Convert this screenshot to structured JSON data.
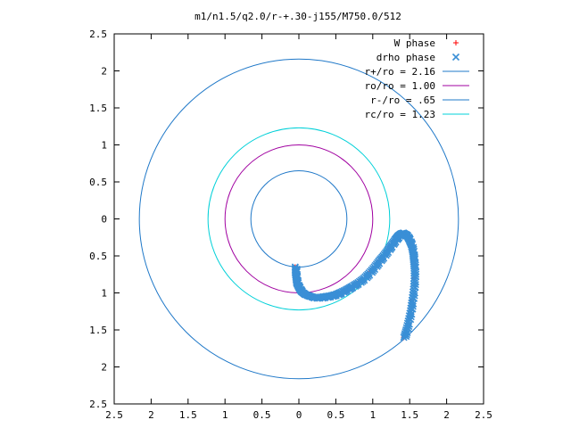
{
  "chart_data": {
    "type": "scatter",
    "title": "m1/n1.5/q2.0/r-+.30-j155/M750.0/512",
    "xlabel": "",
    "ylabel": "",
    "xlim": [
      -2.5,
      2.5
    ],
    "ylim": [
      -2.5,
      2.5
    ],
    "x_tick_labels": [
      "2.5",
      "2",
      "1.5",
      "1",
      "0.5",
      "0",
      "0.5",
      "1",
      "1.5",
      "2",
      "2.5"
    ],
    "y_tick_labels": [
      "2.5",
      "2",
      "1.5",
      "1",
      "0.5",
      "0",
      "0.5",
      "1",
      "1.5",
      "2",
      "2.5"
    ],
    "x_ticks": [
      -2.5,
      -2,
      -1.5,
      -1,
      -0.5,
      0,
      0.5,
      1,
      1.5,
      2,
      2.5
    ],
    "y_ticks": [
      2.5,
      2,
      1.5,
      1,
      0.5,
      0,
      -0.5,
      -1,
      -1.5,
      -2,
      -2.5
    ],
    "grid": false,
    "legend_position": "top-right",
    "series": [
      {
        "name": "W phase",
        "kind": "points",
        "marker": "plus",
        "color": "#ff0000",
        "points": [
          [
            -0.05,
            -0.65
          ],
          [
            -0.04,
            -0.8
          ],
          [
            0.0,
            -0.95
          ],
          [
            0.08,
            -1.02
          ],
          [
            0.2,
            -1.06
          ],
          [
            0.35,
            -1.05
          ],
          [
            0.5,
            -1.02
          ],
          [
            0.65,
            -0.95
          ],
          [
            0.8,
            -0.86
          ],
          [
            0.95,
            -0.73
          ],
          [
            1.08,
            -0.57
          ],
          [
            1.2,
            -0.42
          ],
          [
            1.3,
            -0.28
          ],
          [
            1.38,
            -0.2
          ],
          [
            1.46,
            -0.22
          ],
          [
            1.52,
            -0.35
          ],
          [
            1.55,
            -0.55
          ],
          [
            1.56,
            -0.8
          ],
          [
            1.53,
            -1.1
          ],
          [
            1.48,
            -1.38
          ],
          [
            1.42,
            -1.6
          ]
        ]
      },
      {
        "name": "drho phase",
        "kind": "points",
        "marker": "cross",
        "color": "#3a8fd6",
        "points": [
          [
            -0.05,
            -0.65
          ],
          [
            -0.05,
            -0.72
          ],
          [
            -0.04,
            -0.8
          ],
          [
            -0.03,
            -0.87
          ],
          [
            0.0,
            -0.93
          ],
          [
            0.03,
            -0.98
          ],
          [
            0.08,
            -1.02
          ],
          [
            0.14,
            -1.04
          ],
          [
            0.2,
            -1.06
          ],
          [
            0.28,
            -1.06
          ],
          [
            0.35,
            -1.05
          ],
          [
            0.42,
            -1.04
          ],
          [
            0.5,
            -1.02
          ],
          [
            0.57,
            -0.99
          ],
          [
            0.65,
            -0.95
          ],
          [
            0.72,
            -0.91
          ],
          [
            0.8,
            -0.86
          ],
          [
            0.88,
            -0.8
          ],
          [
            0.95,
            -0.73
          ],
          [
            1.02,
            -0.65
          ],
          [
            1.08,
            -0.57
          ],
          [
            1.14,
            -0.5
          ],
          [
            1.2,
            -0.42
          ],
          [
            1.25,
            -0.35
          ],
          [
            1.3,
            -0.28
          ],
          [
            1.34,
            -0.23
          ],
          [
            1.38,
            -0.2
          ],
          [
            1.42,
            -0.19
          ],
          [
            1.46,
            -0.22
          ],
          [
            1.49,
            -0.28
          ],
          [
            1.52,
            -0.35
          ],
          [
            1.54,
            -0.45
          ],
          [
            1.55,
            -0.55
          ],
          [
            1.56,
            -0.67
          ],
          [
            1.56,
            -0.8
          ],
          [
            1.55,
            -0.95
          ],
          [
            1.53,
            -1.1
          ],
          [
            1.51,
            -1.24
          ],
          [
            1.48,
            -1.38
          ],
          [
            1.45,
            -1.5
          ],
          [
            1.42,
            -1.6
          ]
        ]
      },
      {
        "name": "r+/ro = 2.16",
        "kind": "circle",
        "radius": 2.16,
        "color": "#1f78c8"
      },
      {
        "name": "ro/ro = 1.00",
        "kind": "circle",
        "radius": 1.0,
        "color": "#a000a0"
      },
      {
        "name": "r-/ro = .65",
        "kind": "circle",
        "radius": 0.65,
        "color": "#1f78c8"
      },
      {
        "name": "rc/ro = 1.23",
        "kind": "circle",
        "radius": 1.23,
        "color": "#00d0d8"
      }
    ]
  }
}
